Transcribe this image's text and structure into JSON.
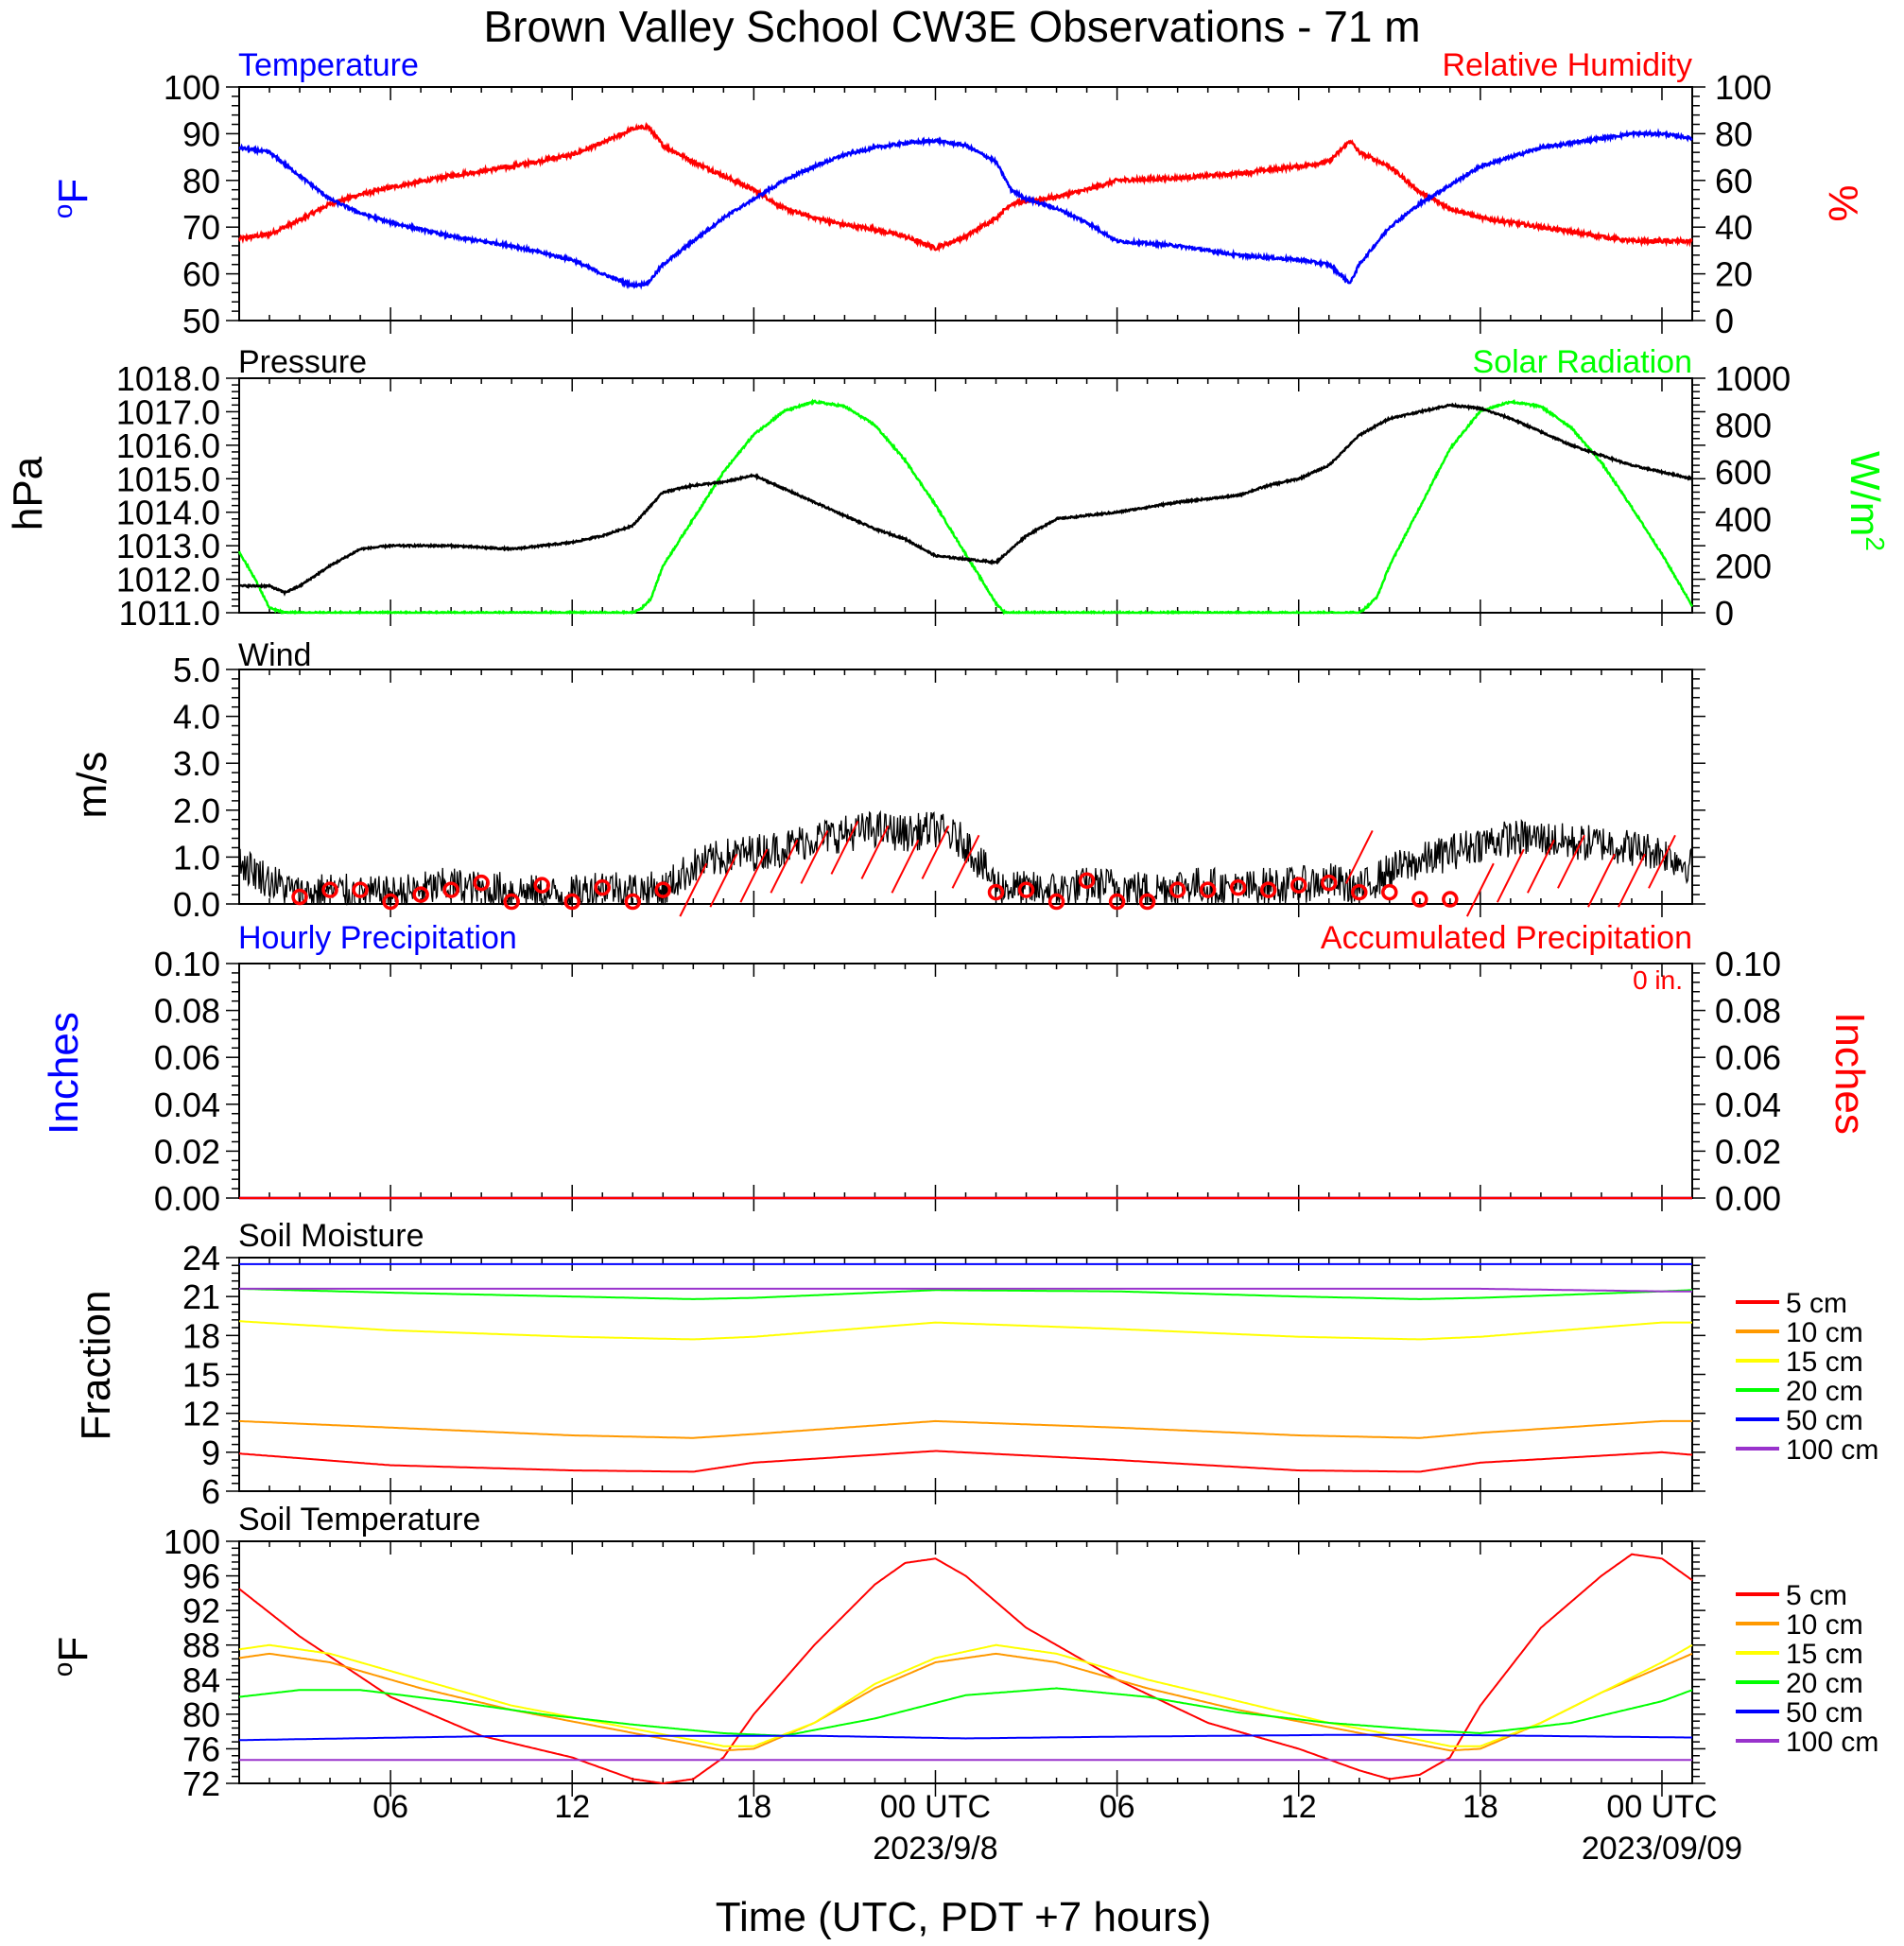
{
  "title": "Brown Valley School CW3E Observations - 71 m",
  "xaxis": {
    "tick_labels": [
      "06",
      "12",
      "18",
      "00 UTC",
      "06",
      "12",
      "18",
      "00 UTC"
    ],
    "date_labels": [
      "2023/9/8",
      "2023/09/09"
    ],
    "label": "Time (UTC, PDT +7 hours)"
  },
  "colors": {
    "temperature": "#0000ff",
    "humidity": "#ff0000",
    "pressure": "#000000",
    "solar": "#00ff00",
    "wind": "#000000",
    "wind_marker": "#ff0000",
    "hourly_precip": "#0000ff",
    "accum_precip": "#ff0000",
    "d5": "#ff0000",
    "d10": "#ff9900",
    "d15": "#ffff00",
    "d20": "#00ff00",
    "d50": "#0000ff",
    "d100": "#9933cc"
  },
  "chart_data": [
    {
      "type": "line",
      "label_left": "Temperature",
      "label_right": "Relative Humidity",
      "ylabel_left": "oF",
      "ylabel_right": "%",
      "ylim_left": [
        50,
        100
      ],
      "ylim_right": [
        0,
        100
      ],
      "yticks_left": [
        "100",
        "90",
        "80",
        "70",
        "60",
        "50"
      ],
      "yticks_right": [
        "100",
        "80",
        "60",
        "40",
        "20",
        "0"
      ],
      "x_hours": [
        1,
        2,
        3,
        4,
        5,
        6,
        8,
        10,
        12,
        13,
        14,
        14.5,
        15,
        16,
        17,
        18,
        19,
        20,
        21,
        22,
        23,
        24,
        25,
        26,
        26.5,
        27,
        28,
        29,
        30,
        32,
        34,
        36,
        37,
        37.7,
        38,
        39,
        40,
        41,
        42,
        43,
        44,
        45,
        46,
        47,
        48,
        49
      ],
      "series": [
        {
          "name": "Temperature",
          "axis": "left",
          "values": [
            87,
            86,
            81,
            76,
            73,
            71,
            68,
            66,
            63,
            60,
            57.5,
            58,
            62,
            67,
            72,
            76,
            80,
            83,
            85.5,
            87,
            88,
            88.5,
            87.5,
            84,
            78,
            76,
            74,
            71,
            67,
            66,
            64,
            63,
            62,
            58,
            62,
            70,
            75,
            79,
            83,
            85,
            87,
            88,
            89,
            90,
            90,
            89
          ]
        },
        {
          "name": "Relative Humidity",
          "axis": "right",
          "values": [
            35,
            37,
            43,
            50,
            54,
            57,
            62,
            66,
            71,
            76,
            82,
            83,
            75,
            68,
            62,
            56,
            48,
            44,
            41,
            39,
            36,
            31,
            36,
            44,
            50,
            51,
            53,
            56,
            60,
            61,
            63,
            66,
            68,
            77,
            72,
            66,
            55,
            48,
            44,
            42,
            40,
            38,
            36,
            34,
            34,
            34
          ]
        }
      ]
    },
    {
      "type": "line",
      "label_left": "Pressure",
      "label_right": "Solar Radiation",
      "ylabel_left": "hPa",
      "ylabel_right": "W/m2",
      "ylim_left": [
        1011.0,
        1018.0
      ],
      "ylim_right": [
        0,
        1000
      ],
      "yticks_left": [
        "1018.0",
        "1017.0",
        "1016.0",
        "1015.0",
        "1014.0",
        "1013.0",
        "1012.0",
        "1011.0"
      ],
      "yticks_right": [
        "1000",
        "800",
        "600",
        "400",
        "200",
        "0"
      ],
      "series": [
        {
          "name": "Pressure",
          "axis": "left",
          "x_hours": [
            1,
            2,
            2.5,
            3,
            4,
            5,
            6,
            8,
            10,
            12,
            13,
            14,
            15,
            16,
            17,
            18,
            19,
            20,
            21,
            22,
            23,
            24,
            25,
            26,
            27,
            28,
            30,
            32,
            34,
            35,
            36,
            37,
            38,
            39,
            40,
            41,
            42,
            43,
            44,
            45,
            46,
            47,
            48,
            49
          ],
          "values": [
            1011.8,
            1011.8,
            1011.6,
            1011.8,
            1012.4,
            1012.9,
            1013.0,
            1013.0,
            1012.9,
            1013.1,
            1013.3,
            1013.6,
            1014.6,
            1014.8,
            1014.9,
            1015.1,
            1014.7,
            1014.3,
            1013.9,
            1013.5,
            1013.2,
            1012.7,
            1012.6,
            1012.5,
            1013.3,
            1013.8,
            1014.0,
            1014.3,
            1014.5,
            1014.8,
            1015.0,
            1015.4,
            1016.3,
            1016.8,
            1017.0,
            1017.2,
            1017.1,
            1016.8,
            1016.4,
            1016.0,
            1015.7,
            1015.4,
            1015.2,
            1015.0
          ]
        },
        {
          "name": "Solar Radiation",
          "axis": "right",
          "x_hours": [
            1,
            1.5,
            2,
            2.5,
            14,
            14.3,
            14.6,
            15,
            16,
            17,
            18,
            19,
            20,
            21,
            22,
            23,
            24,
            25,
            26,
            26.3,
            27,
            38,
            38.3,
            38.6,
            39,
            40,
            41,
            42,
            43,
            44,
            45,
            46,
            47,
            48,
            49
          ],
          "values": [
            260,
            150,
            20,
            0,
            0,
            20,
            60,
            200,
            400,
            600,
            760,
            860,
            900,
            880,
            800,
            650,
            460,
            250,
            40,
            0,
            0,
            0,
            30,
            70,
            200,
            450,
            700,
            860,
            900,
            880,
            790,
            640,
            450,
            250,
            30
          ]
        }
      ]
    },
    {
      "type": "line",
      "label_left": "Wind",
      "ylabel_left": "m/s",
      "ylim_left": [
        0,
        5
      ],
      "yticks_left": [
        "5.0",
        "4.0",
        "3.0",
        "2.0",
        "1.0",
        "0.0"
      ],
      "series": [
        {
          "name": "Wind",
          "x_hours": [
            1,
            2,
            3,
            4,
            5,
            6,
            7,
            8,
            9,
            10,
            11,
            12,
            13,
            14,
            15,
            16,
            17,
            18,
            19,
            20,
            21,
            22,
            23,
            24,
            25,
            26,
            27,
            28,
            29,
            30,
            31,
            32,
            33,
            34,
            35,
            36,
            37,
            38,
            39,
            40,
            41,
            42,
            43,
            44,
            45,
            46,
            47,
            48,
            49
          ],
          "values": [
            0.9,
            0.5,
            0.2,
            0.3,
            0.2,
            0.2,
            0.3,
            0.4,
            0.3,
            0.3,
            0.2,
            0.2,
            0.4,
            0.3,
            0.3,
            0.8,
            1.0,
            1.1,
            1.2,
            1.4,
            1.5,
            1.6,
            1.5,
            1.6,
            1.3,
            0.4,
            0.3,
            0.3,
            0.4,
            0.4,
            0.3,
            0.4,
            0.4,
            0.3,
            0.4,
            0.4,
            0.5,
            0.3,
            0.7,
            0.9,
            1.1,
            1.3,
            1.4,
            1.4,
            1.3,
            1.3,
            1.2,
            1.1,
            0.8
          ]
        }
      ],
      "circle_markers_hours": [
        3,
        4,
        5,
        6,
        7,
        8,
        9,
        10,
        11,
        12,
        13,
        14,
        15,
        26,
        27,
        28,
        29,
        30,
        31,
        32,
        33,
        34,
        35,
        36,
        37,
        38,
        39,
        40,
        41
      ],
      "circle_markers_speed": [
        0.15,
        0.3,
        0.3,
        0.05,
        0.2,
        0.3,
        0.45,
        0.05,
        0.4,
        0.05,
        0.35,
        0.05,
        0.3,
        0.25,
        0.3,
        0.05,
        0.5,
        0.05,
        0.05,
        0.3,
        0.3,
        0.35,
        0.3,
        0.4,
        0.45,
        0.25,
        0.25,
        0.1,
        0.1
      ],
      "barb_hours": [
        16,
        17,
        18,
        19,
        20,
        21,
        22,
        23,
        24,
        25,
        38,
        42,
        43,
        44,
        45,
        46,
        47,
        48
      ],
      "barb_speed": [
        0.3,
        0.5,
        0.6,
        0.8,
        1.0,
        1.2,
        1.1,
        0.8,
        1.1,
        0.9,
        1.0,
        0.3,
        0.6,
        0.8,
        0.9,
        0.5,
        0.5,
        0.9
      ]
    },
    {
      "type": "line",
      "label_left": "Hourly Precipitation",
      "label_right": "Accumulated Precipitation",
      "accum_text": "0 in.",
      "ylabel_left": "Inches",
      "ylabel_right": "Inches",
      "ylim_left": [
        0,
        0.1
      ],
      "ylim_right": [
        0,
        0.1
      ],
      "yticks_left": [
        "0.10",
        "0.08",
        "0.06",
        "0.04",
        "0.02",
        "0.00"
      ],
      "yticks_right": [
        "0.10",
        "0.08",
        "0.06",
        "0.04",
        "0.02",
        "0.00"
      ],
      "series": [
        {
          "name": "Hourly Precipitation",
          "x_hours": [
            1,
            49
          ],
          "values": [
            0,
            0
          ]
        },
        {
          "name": "Accumulated Precipitation",
          "x_hours": [
            1,
            49
          ],
          "values": [
            0,
            0
          ]
        }
      ]
    },
    {
      "type": "line",
      "label_left": "Soil Moisture",
      "ylabel_left": "Fraction",
      "ylim_left": [
        6,
        24
      ],
      "yticks_left": [
        "24",
        "21",
        "18",
        "15",
        "12",
        "9",
        "6"
      ],
      "x_hours": [
        1,
        6,
        12,
        16,
        18,
        24,
        30,
        36,
        40,
        42,
        48,
        49
      ],
      "series": [
        {
          "name": "5 cm",
          "values": [
            8.9,
            8.0,
            7.6,
            7.5,
            8.2,
            9.1,
            8.4,
            7.6,
            7.5,
            8.2,
            9.0,
            8.8
          ]
        },
        {
          "name": "10 cm",
          "values": [
            11.4,
            10.9,
            10.3,
            10.1,
            10.4,
            11.4,
            10.9,
            10.3,
            10.1,
            10.5,
            11.4,
            11.4
          ]
        },
        {
          "name": "15 cm",
          "values": [
            19.1,
            18.4,
            17.9,
            17.7,
            17.9,
            19.0,
            18.5,
            17.9,
            17.7,
            17.9,
            19.0,
            19.0
          ]
        },
        {
          "name": "20 cm",
          "values": [
            21.6,
            21.3,
            21.0,
            20.8,
            20.9,
            21.5,
            21.4,
            21.0,
            20.8,
            20.9,
            21.4,
            21.5
          ]
        },
        {
          "name": "50 cm",
          "values": [
            23.5,
            23.5,
            23.5,
            23.5,
            23.5,
            23.5,
            23.5,
            23.5,
            23.5,
            23.5,
            23.5,
            23.5
          ]
        },
        {
          "name": "100 cm",
          "values": [
            21.6,
            21.6,
            21.6,
            21.6,
            21.6,
            21.6,
            21.6,
            21.6,
            21.6,
            21.6,
            21.4,
            21.4
          ]
        }
      ]
    },
    {
      "type": "line",
      "label_left": "Soil Temperature",
      "ylabel_left": "oF",
      "ylim_left": [
        72,
        100
      ],
      "yticks_left": [
        "100",
        "96",
        "92",
        "88",
        "84",
        "80",
        "76",
        "72"
      ],
      "series": [
        {
          "name": "5 cm",
          "x_hours": [
            1,
            3,
            6,
            9,
            12,
            14,
            15,
            16,
            17,
            18,
            20,
            22,
            23,
            24,
            25,
            27,
            30,
            33,
            36,
            38,
            39,
            40,
            41,
            42,
            44,
            46,
            47,
            48,
            49
          ],
          "values": [
            94.5,
            89,
            82,
            77.5,
            75,
            72.5,
            72,
            72.5,
            75,
            80,
            88,
            95,
            97.5,
            98,
            96,
            90,
            84,
            79,
            76,
            73.5,
            72.5,
            73,
            75,
            81,
            90,
            96,
            98.5,
            98,
            95.5
          ]
        },
        {
          "name": "10 cm",
          "x_hours": [
            1,
            2,
            4,
            7,
            10,
            13,
            16,
            17,
            18,
            20,
            22,
            24,
            26,
            28,
            31,
            34,
            37,
            40,
            41,
            42,
            44,
            46,
            48,
            49
          ],
          "values": [
            86.5,
            87,
            86,
            83,
            80.5,
            78.5,
            76.5,
            75.8,
            76,
            79,
            83,
            86,
            87,
            86,
            83,
            80.5,
            78.5,
            76.5,
            75.8,
            76,
            79,
            82.5,
            85.5,
            87
          ]
        },
        {
          "name": "15 cm",
          "x_hours": [
            1,
            2,
            4,
            7,
            10,
            13,
            16,
            17,
            18,
            20,
            22,
            24,
            26,
            28,
            31,
            34,
            37,
            40,
            41,
            42,
            44,
            46,
            48,
            49
          ],
          "values": [
            87.5,
            88,
            87,
            84,
            81,
            79,
            77,
            76.3,
            76.3,
            79,
            83.5,
            86.5,
            88,
            87,
            84,
            81.5,
            79,
            77,
            76.3,
            76.3,
            79,
            82.5,
            86,
            88
          ]
        },
        {
          "name": "20 cm",
          "x_hours": [
            1,
            3,
            5,
            8,
            11,
            14,
            17,
            19,
            22,
            25,
            28,
            31,
            34,
            37,
            40,
            42,
            45,
            48,
            49
          ],
          "values": [
            82,
            82.8,
            82.8,
            81.5,
            80,
            78.8,
            77.8,
            77.5,
            79.5,
            82.2,
            83,
            82,
            80.2,
            79,
            78.2,
            77.8,
            79,
            81.5,
            82.8
          ]
        },
        {
          "name": "50 cm",
          "x_hours": [
            1,
            10,
            20,
            25,
            30,
            37,
            41,
            49
          ],
          "values": [
            77,
            77.5,
            77.5,
            77.2,
            77.4,
            77.6,
            77.6,
            77.3
          ]
        },
        {
          "name": "100 cm",
          "x_hours": [
            1,
            49
          ],
          "values": [
            74.7,
            74.7
          ]
        }
      ]
    }
  ],
  "legend": {
    "labels": [
      "5 cm",
      "10 cm",
      "15 cm",
      "20 cm",
      "50 cm",
      "100 cm"
    ]
  }
}
